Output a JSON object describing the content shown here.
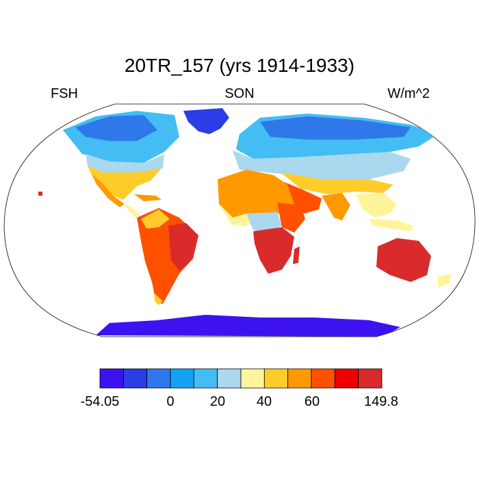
{
  "title": "20TR_157 (yrs 1914-1933)",
  "left_label": "FSH",
  "center_label": "SON",
  "right_label": "W/m^2",
  "colorbar": {
    "colors": [
      "#3d12f0",
      "#2a3de6",
      "#2f78ea",
      "#14a2f3",
      "#43bdf3",
      "#a9d8ef",
      "#fff49a",
      "#ffcc2a",
      "#ff9900",
      "#ff5000",
      "#ee0000",
      "#d92b2b"
    ],
    "tick_labels": [
      "-54.05",
      "0",
      "20",
      "40",
      "60",
      "149.8"
    ]
  }
}
